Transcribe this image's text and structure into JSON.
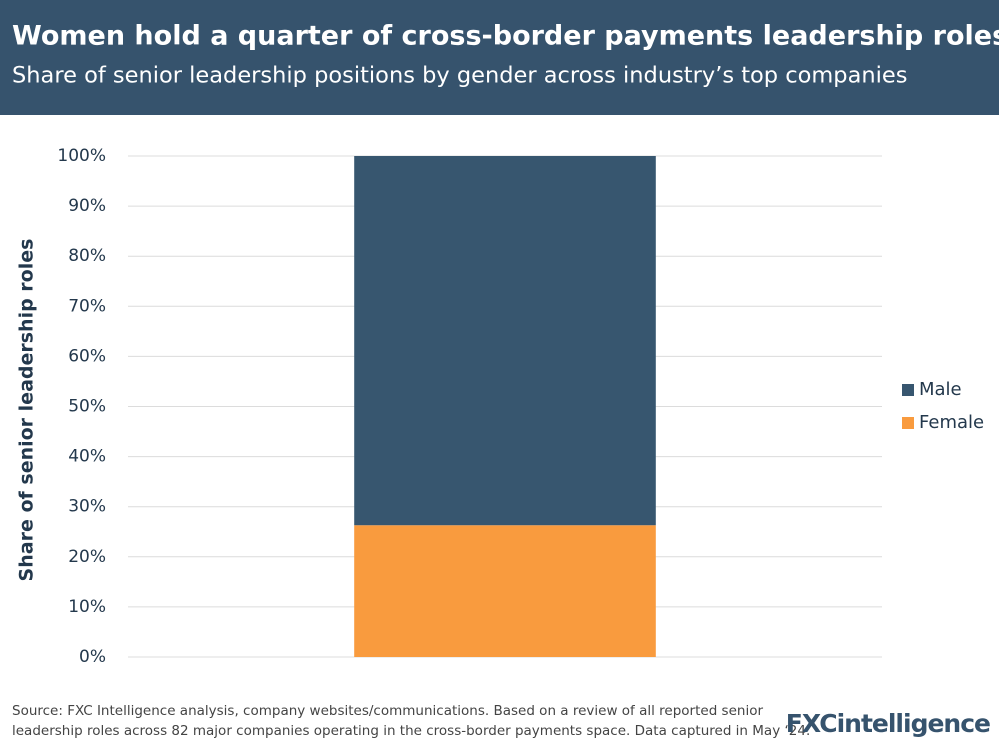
{
  "chart_data": {
    "type": "stacked-bar",
    "title": "Women hold a quarter of cross-border payments leadership roles",
    "subtitle": "Share of senior leadership positions by gender across industry’s top companies",
    "y_label": "Share of senior leadership roles",
    "categories": [
      null
    ],
    "series": [
      {
        "name": "Female",
        "color": "#f99b3e",
        "values": [
          26.3
        ]
      },
      {
        "name": "Male",
        "color": "#37566f",
        "values": [
          73.7
        ]
      }
    ],
    "ylim": [
      0,
      100
    ],
    "yticks": [
      {
        "value": 0,
        "label": "0%"
      },
      {
        "value": 10,
        "label": "10%"
      },
      {
        "value": 20,
        "label": "20%"
      },
      {
        "value": 30,
        "label": "30%"
      },
      {
        "value": 40,
        "label": "40%"
      },
      {
        "value": 50,
        "label": "50%"
      },
      {
        "value": 60,
        "label": "60%"
      },
      {
        "value": 70,
        "label": "70%"
      },
      {
        "value": 80,
        "label": "80%"
      },
      {
        "value": 90,
        "label": "90%"
      },
      {
        "value": 100,
        "label": "100%"
      }
    ],
    "grid": true,
    "legend": "right",
    "source": [
      "Source: FXC Intelligence analysis, company websites/communications. Based on a review of all reported senior",
      "leadership roles across 82 major companies operating in the cross-border payments space. Data captured in May ‘24."
    ],
    "logo": "FXCintelligence"
  }
}
